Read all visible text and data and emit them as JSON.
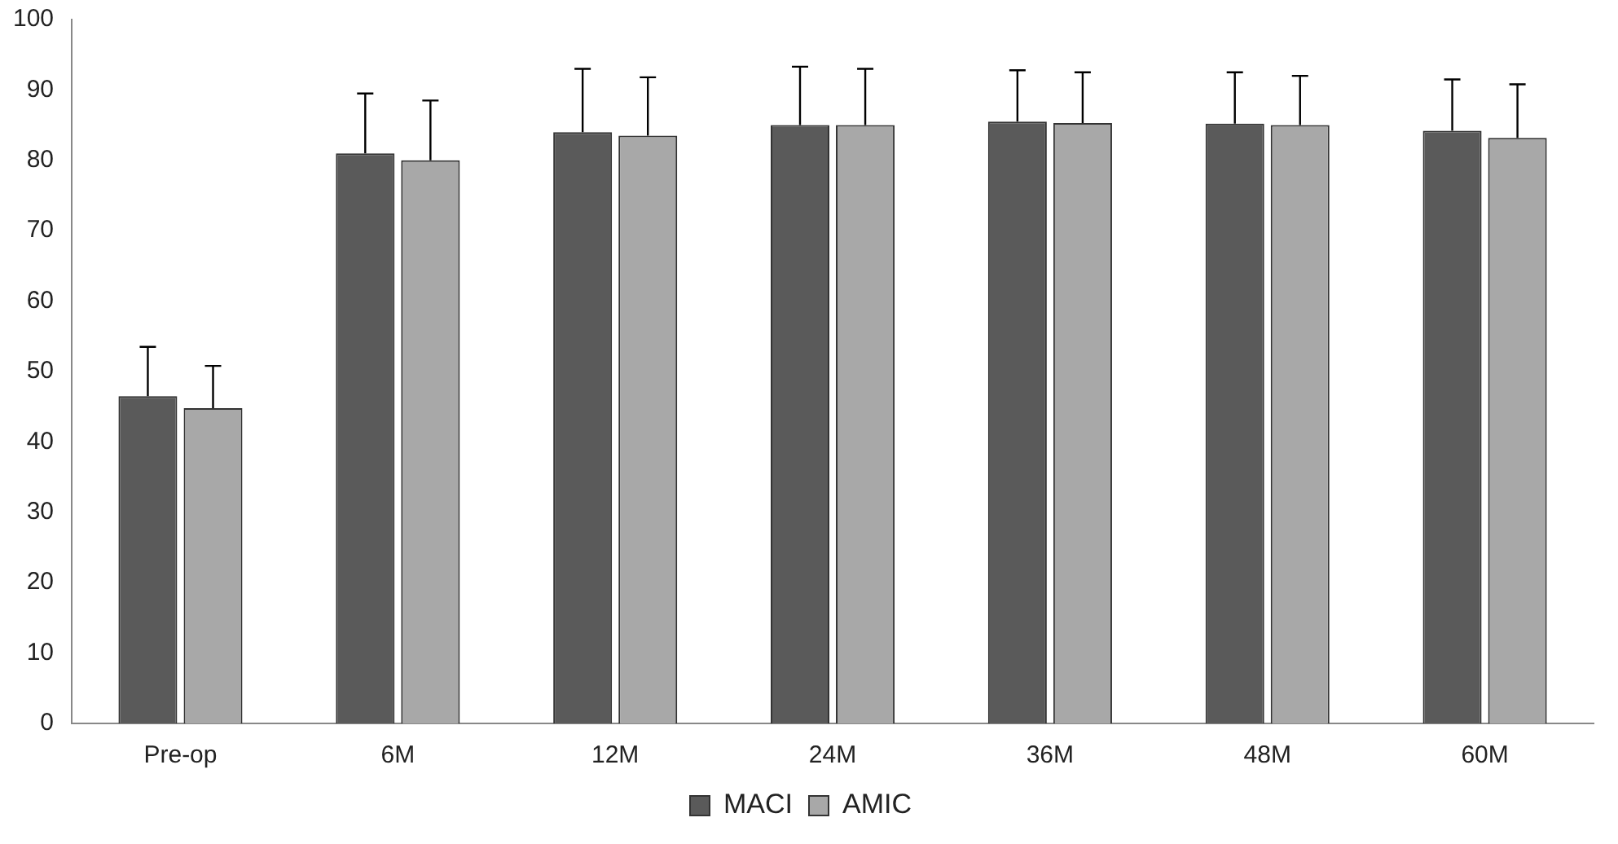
{
  "chart_data": {
    "type": "bar",
    "categories": [
      "Pre-op",
      "6M",
      "12M",
      "24M",
      "36M",
      "48M",
      "60M"
    ],
    "series": [
      {
        "name": "MACI",
        "color": "#5a5a5a",
        "values": [
          46.5,
          81,
          84,
          85,
          85.5,
          85.2,
          84.2
        ],
        "errors": [
          [
            46.5,
            53.5
          ],
          [
            81,
            89.5
          ],
          [
            84,
            93
          ],
          [
            85,
            93.3
          ],
          [
            85.5,
            92.8
          ],
          [
            85.2,
            92.5
          ],
          [
            84.2,
            91.5
          ]
        ]
      },
      {
        "name": "AMIC",
        "color": "#a8a8a8",
        "values": [
          44.8,
          80,
          83.5,
          85,
          85.3,
          85,
          83.2
        ],
        "errors": [
          [
            44.8,
            50.8
          ],
          [
            80,
            88.5
          ],
          [
            83.5,
            91.8
          ],
          [
            85,
            93
          ],
          [
            85.3,
            92.5
          ],
          [
            85,
            92
          ],
          [
            83.2,
            90.8
          ]
        ]
      }
    ],
    "ylim": [
      0,
      100
    ],
    "yticks": [
      0,
      10,
      20,
      30,
      40,
      50,
      60,
      70,
      80,
      90,
      100
    ],
    "grid": false,
    "legend": "bottom"
  }
}
